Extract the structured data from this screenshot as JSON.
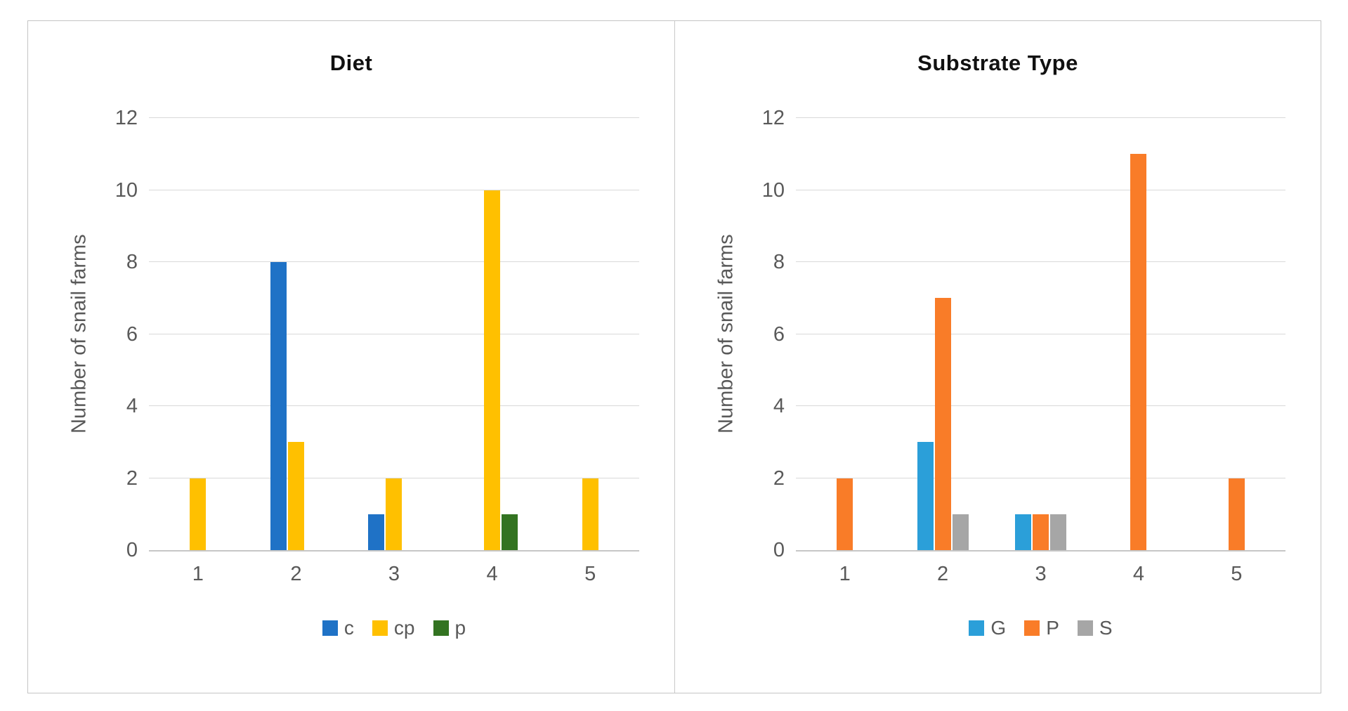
{
  "figure": {
    "background": "#FFFFFF",
    "frame_border_color": "#C4C4C4",
    "grid_color": "#D9D9D9",
    "axis_line_color": "#C6C6C6",
    "text_color": "#595959",
    "title_color": "#111111"
  },
  "chart_data": [
    {
      "type": "bar",
      "title": "Diet",
      "ylabel": "Number of snail farms",
      "xlabel": "",
      "categories": [
        "1",
        "2",
        "3",
        "4",
        "5"
      ],
      "series": [
        {
          "name": "c",
          "color": "#1F72C6",
          "values": [
            0,
            8,
            1,
            0,
            0
          ]
        },
        {
          "name": "cp",
          "color": "#FFC000",
          "values": [
            2,
            3,
            2,
            10,
            2
          ]
        },
        {
          "name": "p",
          "color": "#337321",
          "values": [
            0,
            0,
            0,
            1,
            0
          ]
        }
      ],
      "ylim": [
        0,
        12
      ],
      "ytick_step": 2,
      "grid": true,
      "legend_position": "bottom"
    },
    {
      "type": "bar",
      "title": "Substrate Type",
      "ylabel": "Number of snail farms",
      "xlabel": "",
      "categories": [
        "1",
        "2",
        "3",
        "4",
        "5"
      ],
      "series": [
        {
          "name": "G",
          "color": "#2B9FD9",
          "values": [
            0,
            3,
            1,
            0,
            0
          ]
        },
        {
          "name": "P",
          "color": "#F97C28",
          "values": [
            2,
            7,
            1,
            11,
            2
          ]
        },
        {
          "name": "S",
          "color": "#A6A6A6",
          "values": [
            0,
            1,
            1,
            0,
            0
          ]
        }
      ],
      "ylim": [
        0,
        12
      ],
      "ytick_step": 2,
      "grid": true,
      "legend_position": "bottom"
    }
  ]
}
